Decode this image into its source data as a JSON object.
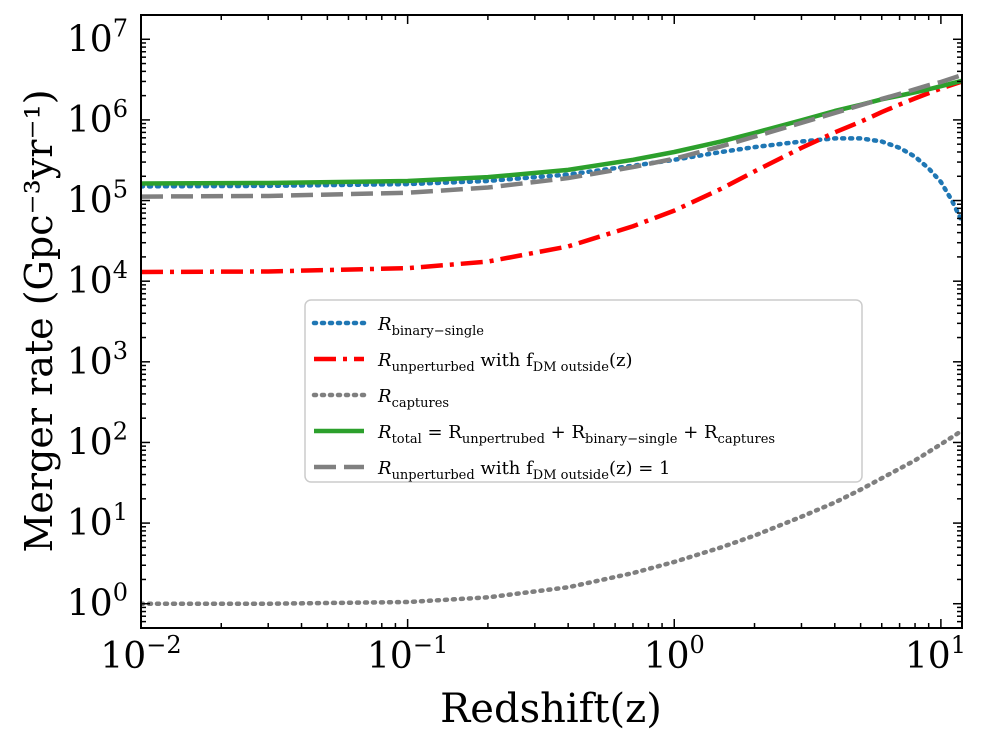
{
  "chart_data": {
    "type": "line",
    "title": "",
    "xlabel": "Redshift(z)",
    "ylabel": "Merger rate (Gpc⁻³yr⁻¹)",
    "xscale": "log",
    "yscale": "log",
    "xlim": [
      0.01,
      12
    ],
    "ylim": [
      0.5,
      20000000
    ],
    "x_ticks": [
      {
        "value": 0.01,
        "base": "10",
        "exp": "−2"
      },
      {
        "value": 0.1,
        "base": "10",
        "exp": "−1"
      },
      {
        "value": 1,
        "base": "10",
        "exp": "0"
      },
      {
        "value": 10,
        "base": "10",
        "exp": "1"
      }
    ],
    "y_ticks": [
      {
        "value": 1,
        "base": "10",
        "exp": "0"
      },
      {
        "value": 10,
        "base": "10",
        "exp": "1"
      },
      {
        "value": 100,
        "base": "10",
        "exp": "2"
      },
      {
        "value": 1000,
        "base": "10",
        "exp": "3"
      },
      {
        "value": 10000,
        "base": "10",
        "exp": "4"
      },
      {
        "value": 100000,
        "base": "10",
        "exp": "5"
      },
      {
        "value": 1000000,
        "base": "10",
        "exp": "6"
      },
      {
        "value": 10000000,
        "base": "10",
        "exp": "7"
      }
    ],
    "legend_position": "center",
    "series": [
      {
        "name": "R_binary−single",
        "legend": {
          "main": "R",
          "sub": "binary−single",
          "rest": ""
        },
        "color": "#1f77b4",
        "style": "dotted",
        "x": [
          0.01,
          0.03,
          0.1,
          0.2,
          0.4,
          0.7,
          1.0,
          1.5,
          2.0,
          3.0,
          4.0,
          5.0,
          6.0,
          7.0,
          8.0,
          9.0,
          10.0,
          11.0,
          12.0
        ],
        "y": [
          150000,
          152000,
          160000,
          175000,
          210000,
          270000,
          320000,
          400000,
          460000,
          540000,
          590000,
          590000,
          540000,
          450000,
          350000,
          250000,
          170000,
          100000,
          55000
        ]
      },
      {
        "name": "R_unperturbed with f_DM outside(z)",
        "legend": {
          "main": "R",
          "sub": "unperturbed",
          "rest": " with f",
          "sub2": "DM outside",
          "tail": "(z)"
        },
        "color": "#ff0000",
        "style": "dashdot",
        "x": [
          0.01,
          0.03,
          0.1,
          0.2,
          0.4,
          0.7,
          1.0,
          1.5,
          2.0,
          3.0,
          4.0,
          5.0,
          6.0,
          7.0,
          8.0,
          9.0,
          10.0,
          12.0
        ],
        "y": [
          13000,
          13200,
          14500,
          17500,
          27000,
          48000,
          75000,
          140000,
          230000,
          450000,
          700000,
          950000,
          1250000,
          1550000,
          1850000,
          2150000,
          2450000,
          3000000
        ]
      },
      {
        "name": "R_captures",
        "legend": {
          "main": "R",
          "sub": "captures",
          "rest": ""
        },
        "color": "#7f7f7f",
        "style": "dotted",
        "x": [
          0.01,
          0.03,
          0.1,
          0.2,
          0.4,
          0.7,
          1.0,
          1.5,
          2.0,
          3.0,
          4.0,
          5.0,
          6.0,
          8.0,
          10.0,
          12.0
        ],
        "y": [
          1.0,
          1.0,
          1.05,
          1.2,
          1.6,
          2.4,
          3.3,
          5.0,
          7.0,
          12.0,
          18.0,
          26.0,
          36.0,
          60.0,
          95.0,
          140.0
        ]
      },
      {
        "name": "R_total = R_unpertrubed + R_binary−single + R_captures",
        "legend": {
          "main": "R",
          "sub": "total",
          "rest": " = R",
          "sub2": "unpertrubed",
          "tail": " + R",
          "sub3": "binary−single",
          "tail2": " + R",
          "sub4": "captures",
          "tail3": ""
        },
        "color": "#2ca02c",
        "style": "solid",
        "x": [
          0.01,
          0.03,
          0.1,
          0.2,
          0.4,
          0.7,
          1.0,
          1.5,
          2.0,
          3.0,
          4.0,
          5.0,
          6.0,
          7.0,
          8.0,
          9.0,
          10.0,
          12.0
        ],
        "y": [
          163000,
          165000,
          175000,
          195000,
          240000,
          320000,
          400000,
          540000,
          690000,
          990000,
          1290000,
          1540000,
          1800000,
          2000000,
          2200000,
          2400000,
          2620000,
          3050000
        ]
      },
      {
        "name": "R_unperturbed with f_DM outside(z) = 1",
        "legend": {
          "main": "R",
          "sub": "unperturbed",
          "rest": " with f",
          "sub2": "DM outside",
          "tail": "(z) = 1"
        },
        "color": "#808080",
        "style": "dashed",
        "x": [
          0.01,
          0.03,
          0.1,
          0.2,
          0.4,
          0.7,
          1.0,
          1.5,
          2.0,
          3.0,
          4.0,
          5.0,
          6.0,
          7.0,
          8.0,
          9.0,
          10.0,
          12.0
        ],
        "y": [
          112000,
          114000,
          125000,
          145000,
          190000,
          260000,
          330000,
          470000,
          620000,
          920000,
          1220000,
          1520000,
          1820000,
          2100000,
          2400000,
          2700000,
          2950000,
          3600000
        ]
      }
    ]
  }
}
